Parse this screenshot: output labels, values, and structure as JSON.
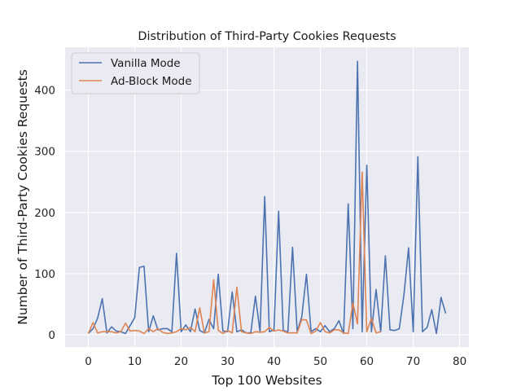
{
  "chart_data": {
    "type": "line",
    "title": "Distribution of Third-Party Cookies Requests",
    "xlabel": "Top 100 Websites",
    "ylabel": "Number of Third-Party Cookies Requests",
    "xlim": [
      -5,
      82
    ],
    "ylim": [
      -20,
      470
    ],
    "x_ticks": [
      0,
      10,
      20,
      30,
      40,
      50,
      60,
      70,
      80
    ],
    "y_ticks": [
      0,
      100,
      200,
      300,
      400
    ],
    "grid": true,
    "legend_position": "top-left",
    "background_color": "#eaeaf2",
    "series": [
      {
        "name": "Vanilla Mode",
        "color": "#4c72b0",
        "x": [
          0,
          1,
          2,
          3,
          4,
          5,
          6,
          7,
          8,
          9,
          10,
          11,
          12,
          13,
          14,
          15,
          16,
          17,
          18,
          19,
          20,
          21,
          22,
          23,
          24,
          25,
          26,
          27,
          28,
          29,
          30,
          31,
          32,
          33,
          34,
          35,
          36,
          37,
          38,
          39,
          40,
          41,
          42,
          43,
          44,
          45,
          46,
          47,
          48,
          49,
          50,
          51,
          52,
          53,
          54,
          55,
          56,
          57,
          58,
          59,
          60,
          61,
          62,
          63,
          64,
          65,
          66,
          67,
          68,
          69,
          70,
          71,
          72,
          73,
          74,
          75,
          76,
          77
        ],
        "values": [
          2,
          10,
          27,
          59,
          3,
          13,
          6,
          5,
          2,
          15,
          28,
          110,
          112,
          5,
          31,
          8,
          10,
          10,
          5,
          133,
          5,
          16,
          5,
          42,
          7,
          3,
          25,
          10,
          99,
          6,
          5,
          70,
          5,
          8,
          3,
          3,
          63,
          5,
          226,
          5,
          8,
          202,
          7,
          5,
          143,
          5,
          30,
          99,
          5,
          10,
          5,
          15,
          5,
          10,
          23,
          2,
          214,
          10,
          447,
          5,
          277,
          5,
          74,
          5,
          129,
          8,
          7,
          10,
          65,
          142,
          5,
          291,
          5,
          12,
          41,
          2,
          61,
          35
        ]
      },
      {
        "name": "Ad-Block Mode",
        "color": "#dd8452",
        "x": [
          0,
          1,
          2,
          3,
          4,
          5,
          6,
          7,
          8,
          9,
          10,
          11,
          12,
          13,
          14,
          15,
          16,
          17,
          18,
          19,
          20,
          21,
          22,
          23,
          24,
          25,
          26,
          27,
          28,
          29,
          30,
          31,
          32,
          33,
          34,
          35,
          36,
          37,
          38,
          39,
          40,
          41,
          42,
          43,
          44,
          45,
          46,
          47,
          48,
          49,
          50,
          51,
          52,
          53,
          54,
          55,
          56,
          57,
          58,
          59,
          60,
          61,
          62,
          63
        ],
        "values": [
          2,
          20,
          3,
          5,
          5,
          5,
          3,
          5,
          19,
          6,
          7,
          6,
          2,
          10,
          5,
          10,
          4,
          2,
          3,
          5,
          10,
          8,
          12,
          5,
          44,
          3,
          5,
          90,
          7,
          2,
          7,
          3,
          78,
          5,
          3,
          2,
          5,
          4,
          5,
          12,
          6,
          8,
          6,
          3,
          3,
          3,
          25,
          24,
          2,
          6,
          20,
          5,
          3,
          8,
          8,
          3,
          2,
          52,
          18,
          266,
          5,
          27,
          3,
          5
        ]
      }
    ]
  }
}
